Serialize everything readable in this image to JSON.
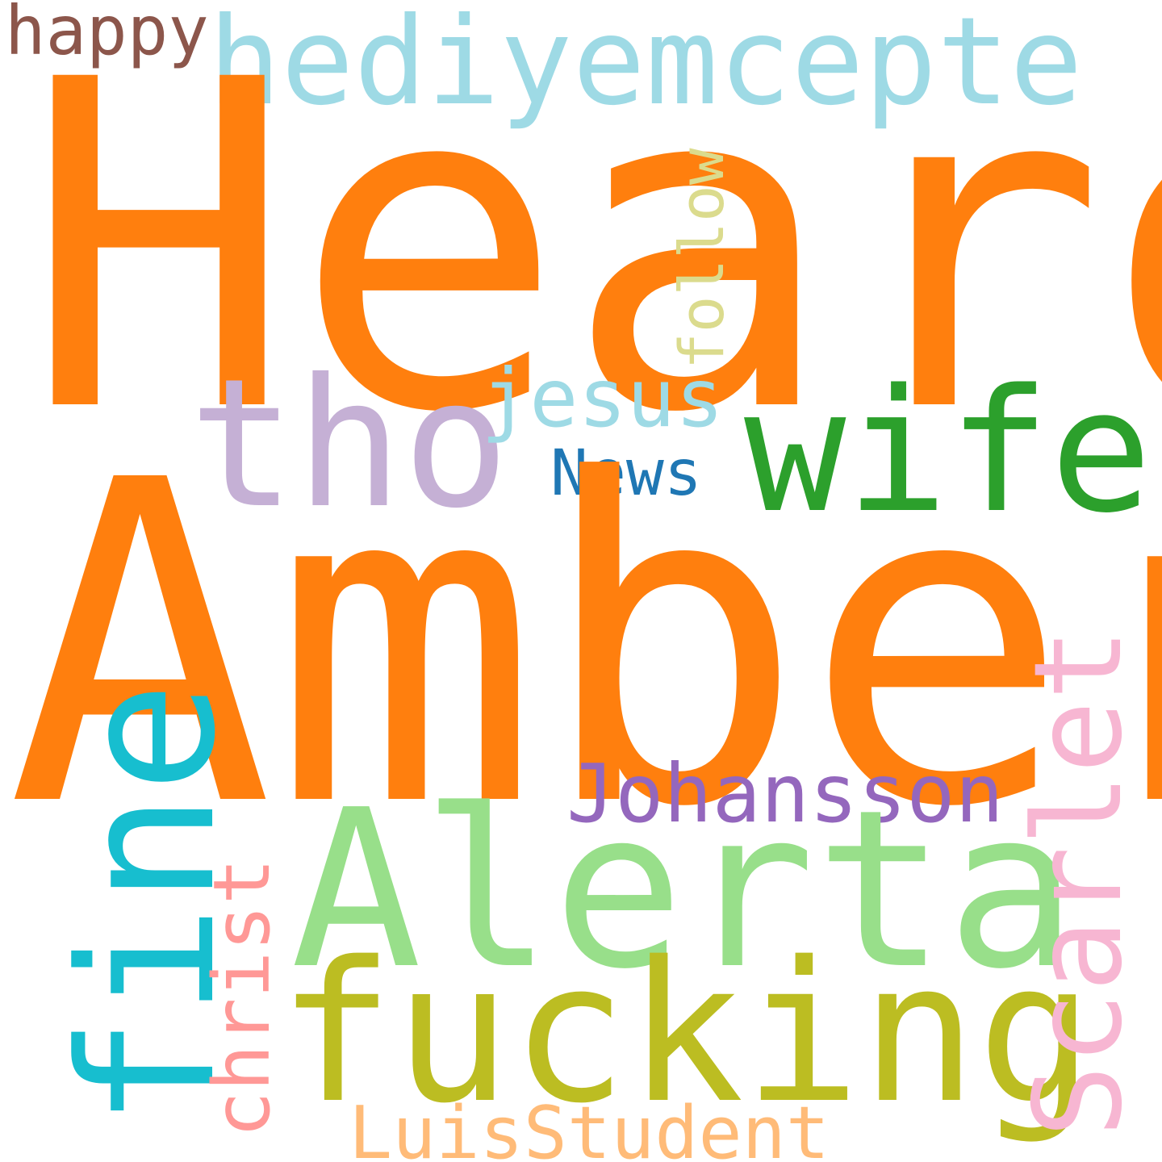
{
  "words": {
    "heard": {
      "text": "Heard",
      "color": "#ff7f0e"
    },
    "amber": {
      "text": "Amber",
      "color": "#ff7f0e"
    },
    "hediyem": {
      "text": "hediyemcepte",
      "color": "#9edae5"
    },
    "happy": {
      "text": "happy",
      "color": "#8c564b"
    },
    "tho": {
      "text": "tho",
      "color": "#c5b0d5"
    },
    "wife": {
      "text": "wife",
      "color": "#2ca02c"
    },
    "jesus": {
      "text": "jesus",
      "color": "#9edae5"
    },
    "news": {
      "text": "News",
      "color": "#1f77b4"
    },
    "follow": {
      "text": "follow",
      "color": "#dbdb8d"
    },
    "johansson": {
      "text": "Johansson",
      "color": "#9467bd"
    },
    "alerta": {
      "text": "Alerta",
      "color": "#98df8a"
    },
    "fine": {
      "text": "fine",
      "color": "#17becf"
    },
    "christ": {
      "text": "christ",
      "color": "#ff9896"
    },
    "scarlet": {
      "text": "Scarlet",
      "color": "#f7b6d2"
    },
    "fucking": {
      "text": "fucking",
      "color": "#bcbd22"
    },
    "luis": {
      "text": "LuisStudent",
      "color": "#ffbb78"
    }
  }
}
